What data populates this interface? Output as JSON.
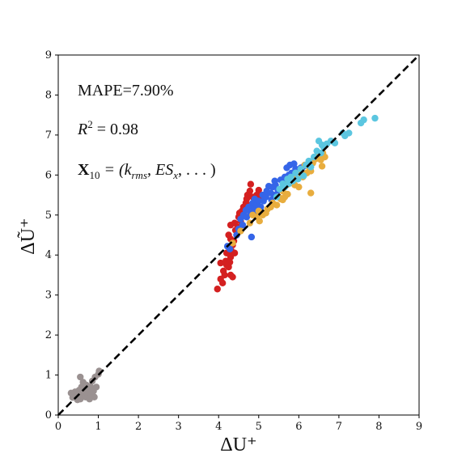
{
  "chart_data": {
    "type": "scatter",
    "xlabel": "ΔU⁺",
    "ylabel": "ΔŨ⁺",
    "xlim": [
      0,
      9
    ],
    "ylim": [
      0,
      9
    ],
    "x_ticks": [
      0,
      1,
      2,
      3,
      4,
      5,
      6,
      7,
      8,
      9
    ],
    "y_ticks": [
      0,
      1,
      2,
      3,
      4,
      5,
      6,
      7,
      8,
      9
    ],
    "grid": false,
    "legend": "none",
    "reference_line": {
      "style": "dashed",
      "color": "#000000",
      "from": [
        0,
        0
      ],
      "to": [
        9,
        9
      ]
    },
    "annotations": {
      "mape": "MAPE=7.90%",
      "r2_symbol": "R",
      "r2_exp": "2",
      "r2_value": " = 0.98",
      "x_symbol": "X",
      "x_sub": "10",
      "x_rest": " = (k",
      "x_rms": "rms",
      "x_comma": ", ES",
      "x_subx": "x",
      "x_tail": ", . . . )"
    },
    "series": [
      {
        "color": "#9a9191",
        "points": [
          [
            0.32,
            0.55
          ],
          [
            0.38,
            0.5
          ],
          [
            0.42,
            0.58
          ],
          [
            0.45,
            0.45
          ],
          [
            0.5,
            0.52
          ],
          [
            0.52,
            0.62
          ],
          [
            0.55,
            0.4
          ],
          [
            0.58,
            0.7
          ],
          [
            0.6,
            0.5
          ],
          [
            0.62,
            0.82
          ],
          [
            0.55,
            0.95
          ],
          [
            0.65,
            0.6
          ],
          [
            0.68,
            0.45
          ],
          [
            0.7,
            0.75
          ],
          [
            0.72,
            0.55
          ],
          [
            0.75,
            0.65
          ],
          [
            0.78,
            0.4
          ],
          [
            0.8,
            0.72
          ],
          [
            0.82,
            0.5
          ],
          [
            0.85,
            0.85
          ],
          [
            0.88,
            0.6
          ],
          [
            0.9,
            0.45
          ],
          [
            0.92,
            0.95
          ],
          [
            0.95,
            0.7
          ],
          [
            1.0,
            1.02
          ],
          [
            1.02,
            1.1
          ],
          [
            0.48,
            0.38
          ],
          [
            0.36,
            0.44
          ]
        ]
      },
      {
        "color": "#d42020",
        "points": [
          [
            3.97,
            3.15
          ],
          [
            4.05,
            3.4
          ],
          [
            4.1,
            3.3
          ],
          [
            4.12,
            3.6
          ],
          [
            4.15,
            3.5
          ],
          [
            4.05,
            3.8
          ],
          [
            4.18,
            3.85
          ],
          [
            4.2,
            3.75
          ],
          [
            4.25,
            3.7
          ],
          [
            4.28,
            3.82
          ],
          [
            4.3,
            3.95
          ],
          [
            4.2,
            4.05
          ],
          [
            4.32,
            4.1
          ],
          [
            4.35,
            4.25
          ],
          [
            4.3,
            4.4
          ],
          [
            4.25,
            4.5
          ],
          [
            4.38,
            4.35
          ],
          [
            4.4,
            4.05
          ],
          [
            4.3,
            3.5
          ],
          [
            4.35,
            3.45
          ],
          [
            4.42,
            4.62
          ],
          [
            4.45,
            4.5
          ],
          [
            4.3,
            4.75
          ],
          [
            4.4,
            4.8
          ],
          [
            4.48,
            4.7
          ],
          [
            4.5,
            4.95
          ],
          [
            4.55,
            4.85
          ],
          [
            4.52,
            5.05
          ],
          [
            4.58,
            5.1
          ],
          [
            4.6,
            5.0
          ],
          [
            4.62,
            5.2
          ],
          [
            4.65,
            5.1
          ],
          [
            4.68,
            5.3
          ],
          [
            4.7,
            5.4
          ],
          [
            4.72,
            5.5
          ],
          [
            4.75,
            5.25
          ],
          [
            4.78,
            5.6
          ],
          [
            4.8,
            5.77
          ],
          [
            4.85,
            5.45
          ],
          [
            4.88,
            5.05
          ],
          [
            4.95,
            5.5
          ],
          [
            5.0,
            5.62
          ],
          [
            5.02,
            5.45
          ]
        ]
      },
      {
        "color": "#3565e8",
        "points": [
          [
            4.22,
            4.22
          ],
          [
            4.28,
            4.15
          ],
          [
            4.45,
            4.5
          ],
          [
            4.5,
            4.65
          ],
          [
            4.55,
            4.9
          ],
          [
            4.6,
            4.75
          ],
          [
            4.62,
            5.0
          ],
          [
            4.68,
            5.12
          ],
          [
            4.7,
            4.95
          ],
          [
            4.75,
            5.2
          ],
          [
            4.8,
            5.05
          ],
          [
            4.82,
            4.45
          ],
          [
            4.85,
            5.3
          ],
          [
            4.88,
            5.15
          ],
          [
            4.9,
            5.4
          ],
          [
            4.95,
            5.25
          ],
          [
            4.98,
            5.1
          ],
          [
            5.0,
            5.35
          ],
          [
            5.05,
            5.2
          ],
          [
            5.1,
            5.5
          ],
          [
            5.12,
            5.35
          ],
          [
            5.18,
            5.45
          ],
          [
            5.2,
            5.6
          ],
          [
            5.25,
            5.72
          ],
          [
            5.3,
            5.55
          ],
          [
            5.35,
            5.7
          ],
          [
            5.38,
            5.5
          ],
          [
            5.42,
            5.75
          ],
          [
            5.48,
            5.62
          ],
          [
            5.55,
            5.88
          ],
          [
            5.6,
            5.82
          ],
          [
            5.65,
            5.95
          ],
          [
            5.7,
            6.18
          ],
          [
            5.75,
            6.0
          ],
          [
            5.78,
            6.25
          ],
          [
            5.82,
            6.05
          ],
          [
            5.88,
            6.28
          ],
          [
            5.92,
            6.15
          ],
          [
            5.98,
            6.1
          ],
          [
            6.05,
            6.18
          ],
          [
            6.1,
            6.2
          ],
          [
            5.4,
            5.85
          ],
          [
            5.32,
            5.38
          ]
        ]
      },
      {
        "color": "#e8ad3e",
        "points": [
          [
            4.35,
            4.3
          ],
          [
            4.55,
            4.6
          ],
          [
            4.78,
            4.8
          ],
          [
            4.85,
            5.0
          ],
          [
            4.95,
            4.95
          ],
          [
            5.0,
            5.1
          ],
          [
            5.02,
            4.85
          ],
          [
            5.1,
            5.0
          ],
          [
            5.18,
            5.05
          ],
          [
            5.22,
            5.15
          ],
          [
            5.3,
            5.2
          ],
          [
            5.35,
            5.3
          ],
          [
            5.45,
            5.25
          ],
          [
            5.5,
            5.45
          ],
          [
            5.55,
            5.4
          ],
          [
            5.6,
            5.6
          ],
          [
            5.65,
            5.45
          ],
          [
            5.7,
            5.75
          ],
          [
            5.72,
            5.52
          ],
          [
            5.78,
            5.85
          ],
          [
            5.85,
            5.9
          ],
          [
            5.9,
            5.75
          ],
          [
            5.95,
            6.0
          ],
          [
            6.0,
            5.7
          ],
          [
            6.05,
            6.1
          ],
          [
            6.1,
            5.95
          ],
          [
            6.15,
            6.25
          ],
          [
            6.2,
            6.05
          ],
          [
            6.25,
            6.2
          ],
          [
            6.3,
            6.1
          ],
          [
            6.35,
            6.3
          ],
          [
            6.42,
            6.4
          ],
          [
            6.5,
            6.5
          ],
          [
            6.55,
            6.38
          ],
          [
            6.58,
            6.22
          ],
          [
            6.6,
            6.55
          ],
          [
            6.65,
            6.45
          ],
          [
            6.3,
            5.55
          ],
          [
            5.6,
            5.38
          ]
        ]
      },
      {
        "color": "#5bc6e0",
        "points": [
          [
            5.45,
            5.45
          ],
          [
            5.52,
            5.65
          ],
          [
            5.6,
            5.78
          ],
          [
            5.65,
            5.7
          ],
          [
            5.72,
            5.9
          ],
          [
            5.75,
            5.78
          ],
          [
            5.8,
            5.95
          ],
          [
            5.85,
            5.85
          ],
          [
            5.92,
            6.05
          ],
          [
            5.98,
            5.9
          ],
          [
            6.05,
            6.15
          ],
          [
            6.12,
            5.98
          ],
          [
            6.18,
            6.25
          ],
          [
            6.25,
            6.35
          ],
          [
            6.3,
            6.2
          ],
          [
            6.38,
            6.45
          ],
          [
            6.45,
            6.6
          ],
          [
            6.5,
            6.85
          ],
          [
            6.55,
            6.55
          ],
          [
            6.62,
            6.7
          ],
          [
            6.7,
            6.78
          ],
          [
            6.8,
            6.85
          ],
          [
            6.9,
            6.8
          ],
          [
            7.1,
            7.05
          ],
          [
            7.15,
            6.98
          ],
          [
            7.25,
            7.05
          ],
          [
            7.55,
            7.3
          ],
          [
            7.62,
            7.38
          ],
          [
            7.9,
            7.42
          ],
          [
            6.58,
            6.75
          ]
        ]
      }
    ]
  }
}
